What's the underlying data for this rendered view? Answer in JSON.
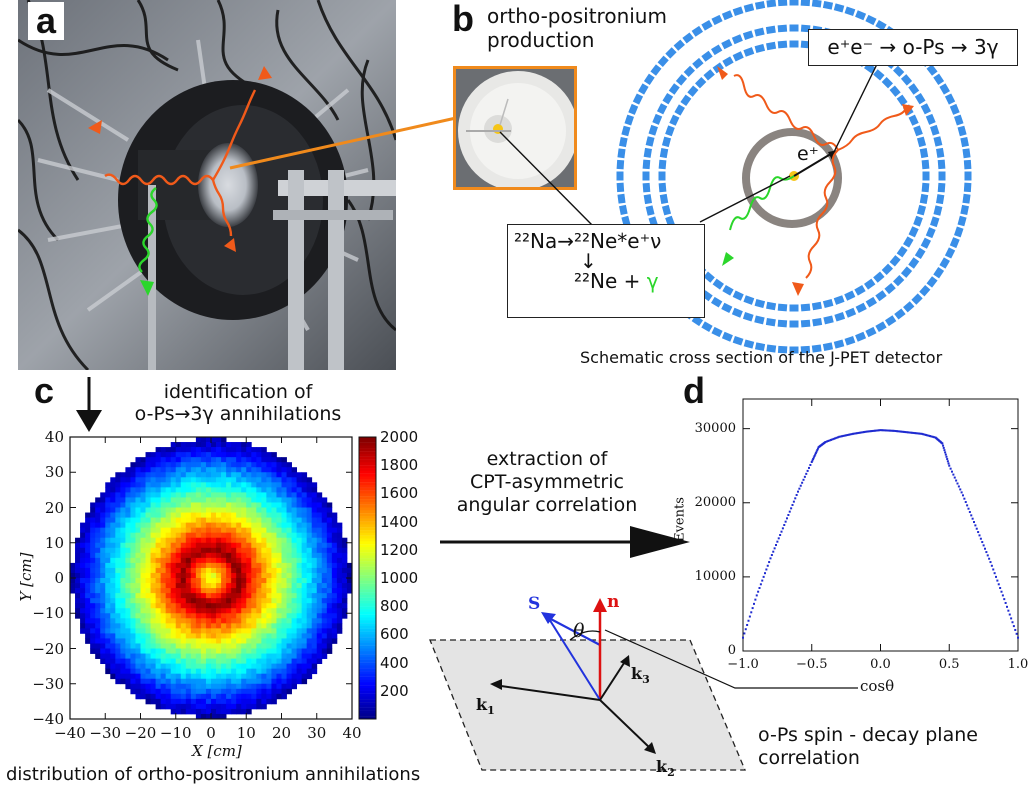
{
  "panels": {
    "a": {
      "letter": "a"
    },
    "b": {
      "letter": "b",
      "title_line1": "ortho-positronium",
      "title_line2": "production",
      "reaction": "e⁺e⁻ → o-Ps → 3γ",
      "positron_label": "e⁺",
      "decay_line1": "²²Na→²²Ne*e⁺ν",
      "decay_arrow": "↓",
      "decay_line2_prefix": "²²Ne + ",
      "decay_line2_gamma": "γ",
      "caption": "Schematic cross section of the J-PET detector"
    },
    "c": {
      "letter": "c",
      "arrow_label_line1": "identification of",
      "arrow_label_line2": "o-Ps→3γ annihilations",
      "xlabel": "X [cm]",
      "ylabel": "Y [cm]",
      "xticks": [
        "−40",
        "−30",
        "−20",
        "−10",
        "0",
        "10",
        "20",
        "30",
        "40"
      ],
      "yticks": [
        "40",
        "30",
        "20",
        "10",
        "0",
        "−10",
        "−20",
        "−30",
        "−40"
      ],
      "colorbar_ticks": [
        "2000",
        "1800",
        "1600",
        "1400",
        "1200",
        "1000",
        "800",
        "600",
        "400",
        "200"
      ],
      "caption": "distribution of ortho-positronium annihilations"
    },
    "middle": {
      "line1": "extraction of",
      "line2": "CPT-asymmetric",
      "line3": "angular correlation"
    },
    "spin": {
      "S": "S",
      "n": "n",
      "theta": "θ",
      "k1": "k",
      "k1_sub": "1",
      "k2": "k",
      "k2_sub": "2",
      "k3": "k",
      "k3_sub": "3",
      "caption_line1": "o-Ps spin - decay plane",
      "caption_line2": "correlation"
    },
    "d": {
      "letter": "d",
      "ylabel": "Events",
      "xlabel": "cosθ",
      "xticks": [
        "−1.0",
        "−0.5",
        "0.0",
        "0.5",
        "1.0"
      ],
      "yticks": [
        "0",
        "10000",
        "20000",
        "30000"
      ]
    }
  },
  "colors": {
    "orange": "#f08a1c",
    "photon": "#f05a1a",
    "green": "#2bd62b",
    "blue_scint": "#3a8fe8",
    "ring": "#8a8480",
    "source": "#f5c518",
    "spin_blue": "#2233dd",
    "normal_red": "#dd1111"
  },
  "chart_data": [
    {
      "type": "heatmap",
      "xlabel": "X [cm]",
      "ylabel": "Y [cm]",
      "xlim": [
        -40,
        40
      ],
      "ylim": [
        -40,
        40
      ],
      "colorbar_range": [
        0,
        2000
      ],
      "colorbar_ticks": [
        200,
        400,
        600,
        800,
        1000,
        1200,
        1400,
        1600,
        1800,
        2000
      ],
      "description_values": {
        "peak_radius_cm": 8,
        "peak_value": 2000,
        "center_value": 1100,
        "edge_radius_cm": 38,
        "edge_value": 150
      }
    },
    {
      "type": "scatter",
      "xlabel": "cosθ",
      "ylabel": "Events",
      "xlim": [
        -1.0,
        1.0
      ],
      "ylim": [
        0,
        34000
      ],
      "x": [
        -1.0,
        -0.9,
        -0.8,
        -0.7,
        -0.6,
        -0.5,
        -0.45,
        -0.4,
        -0.3,
        -0.2,
        -0.1,
        0.0,
        0.1,
        0.2,
        0.3,
        0.4,
        0.45,
        0.5,
        0.6,
        0.7,
        0.8,
        0.9,
        1.0
      ],
      "y": [
        1800,
        7500,
        12500,
        17000,
        21500,
        25500,
        27500,
        28200,
        28900,
        29300,
        29600,
        29800,
        29700,
        29500,
        29300,
        28800,
        28000,
        25000,
        21000,
        16500,
        12000,
        7000,
        1800
      ]
    }
  ]
}
